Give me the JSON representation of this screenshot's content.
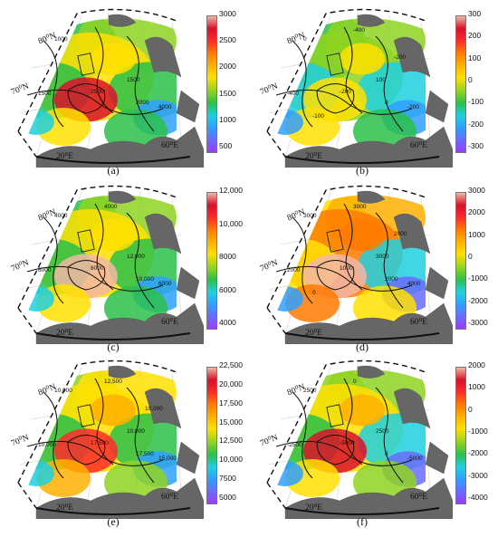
{
  "colormap": [
    "#9b3bff",
    "#6a6cff",
    "#2fa0ff",
    "#1fd0e0",
    "#2ac04a",
    "#8fd321",
    "#ffe000",
    "#ffb000",
    "#ff7a00",
    "#ff2a2a",
    "#d9102a",
    "#f3b6a6"
  ],
  "lat_labels": [
    "80⁰N",
    "70⁰N"
  ],
  "lon_labels": [
    "20⁰E",
    "60⁰E"
  ],
  "panels": [
    {
      "id": "a",
      "caption": "(a)",
      "ticks": [
        "3000",
        "2500",
        "2000",
        "1500",
        "1000",
        "500"
      ],
      "contour_labels": [
        "1000",
        "1500",
        "2500",
        "1500",
        "2000",
        "4000"
      ],
      "field": {
        "base": 0.45,
        "hot": 0.9,
        "cold": 0.2
      }
    },
    {
      "id": "b",
      "caption": "(b)",
      "ticks": [
        "300",
        "200",
        "100",
        "0",
        "-100",
        "-200",
        "-300"
      ],
      "contour_labels": [
        "0",
        "-400",
        "-200",
        "100",
        "0",
        "-200",
        "-400",
        "-200",
        "-100"
      ],
      "field": {
        "base": 0.42,
        "hot": 0.55,
        "cold": 0.18
      }
    },
    {
      "id": "c",
      "caption": "(c)",
      "ticks": [
        "12,000",
        "10,000",
        "8000",
        "6000",
        "4000"
      ],
      "contour_labels": [
        "4000",
        "6000",
        "8000",
        "12,000",
        "10,000",
        "6000",
        "4000"
      ],
      "field": {
        "base": 0.45,
        "hot": 0.95,
        "cold": 0.2
      }
    },
    {
      "id": "d",
      "caption": "(d)",
      "ticks": [
        "3000",
        "2000",
        "1000",
        "0",
        "-1000",
        "-2000",
        "-3000"
      ],
      "contour_labels": [
        "3000",
        "2000",
        "1000",
        "3000",
        "2000",
        "4000",
        "3000",
        "2000",
        "0"
      ],
      "field": {
        "base": 0.62,
        "hot": 0.92,
        "cold": 0.12
      }
    },
    {
      "id": "e",
      "caption": "(e)",
      "ticks": [
        "22,500",
        "20,000",
        "17,500",
        "15,000",
        "12,500",
        "10,000",
        "7500",
        "5000"
      ],
      "contour_labels": [
        "10,000",
        "10,000",
        "17,500",
        "10,000",
        "17,500",
        "15,000",
        "12,500",
        "10,000"
      ],
      "field": {
        "base": 0.5,
        "hot": 0.78,
        "cold": 0.22
      }
    },
    {
      "id": "f",
      "caption": "(f)",
      "ticks": [
        "2000",
        "1000",
        "0",
        "-1000",
        "-2000",
        "-3000",
        "-4000"
      ],
      "contour_labels": [
        "2500",
        "-2500",
        "-5000",
        "2500",
        "0",
        "-5000",
        "0"
      ],
      "field": {
        "base": 0.48,
        "hot": 0.85,
        "cold": 0.15
      }
    }
  ]
}
